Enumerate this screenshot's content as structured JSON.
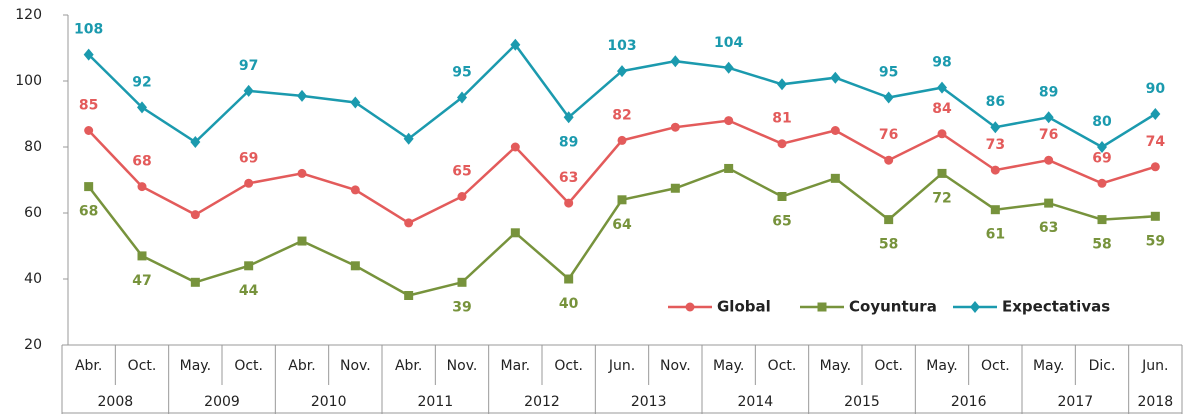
{
  "chart_data": {
    "type": "line",
    "categories": [
      "Abr.",
      "Oct.",
      "May.",
      "Oct.",
      "Abr.",
      "Nov.",
      "Abr.",
      "Nov.",
      "Mar.",
      "Oct.",
      "Jun.",
      "Nov.",
      "May.",
      "Oct.",
      "May.",
      "Oct.",
      "May.",
      "Oct.",
      "May.",
      "Dic.",
      "Jun."
    ],
    "years": [
      "2008",
      null,
      "2009",
      null,
      "2010",
      null,
      "2011",
      null,
      "2012",
      null,
      "2013",
      null,
      "2014",
      null,
      "2015",
      null,
      "2016",
      null,
      "2017",
      null,
      "2018"
    ],
    "series": [
      {
        "name": "Global",
        "color": "#e35b5b",
        "marker": "circle",
        "values": [
          85,
          68,
          59.5,
          69,
          72,
          67,
          57,
          65,
          80,
          63,
          82,
          86,
          88,
          81,
          85,
          76,
          84,
          73,
          76,
          69,
          74
        ],
        "value_labels": [
          "85",
          "68",
          null,
          "69",
          null,
          null,
          null,
          "65",
          null,
          "63",
          "82",
          null,
          null,
          "81",
          null,
          "76",
          "84",
          "73",
          "76",
          "69",
          "74"
        ]
      },
      {
        "name": "Coyuntura",
        "color": "#77933c",
        "marker": "square",
        "values": [
          68,
          47,
          39,
          44,
          51.5,
          44,
          35,
          39,
          54,
          40,
          64,
          67.5,
          73.5,
          65,
          70.5,
          58,
          72,
          61,
          63,
          58,
          59
        ],
        "value_labels": [
          "68",
          "47",
          null,
          "44",
          null,
          null,
          null,
          "39",
          null,
          "40",
          "64",
          null,
          null,
          "65",
          null,
          "58",
          "72",
          "61",
          "63",
          "58",
          "59"
        ]
      },
      {
        "name": "Expectativas",
        "color": "#1b9aae",
        "marker": "diamond",
        "values": [
          108,
          92,
          81.5,
          97,
          95.5,
          93.5,
          82.5,
          95,
          111,
          89,
          103,
          106,
          104,
          99,
          101,
          95,
          98,
          86,
          89,
          80,
          90
        ],
        "value_labels": [
          "108",
          "92",
          null,
          "97",
          null,
          null,
          null,
          "95",
          null,
          "89",
          "103",
          null,
          "104",
          null,
          null,
          "95",
          "98",
          "86",
          "89",
          "80",
          "90"
        ]
      }
    ],
    "ylim": [
      20,
      120
    ],
    "yticks": [
      20,
      40,
      60,
      80,
      100,
      120
    ],
    "grid": false,
    "legend": "lower right"
  }
}
